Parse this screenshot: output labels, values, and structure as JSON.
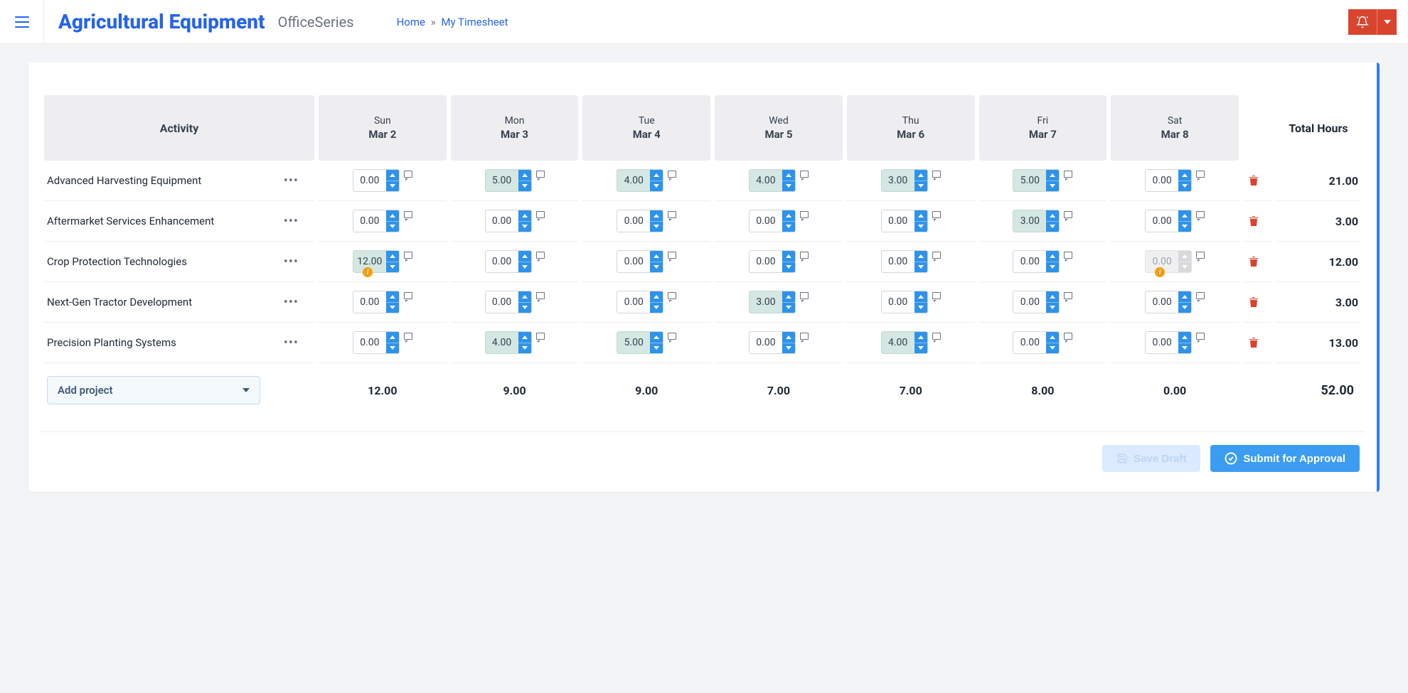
{
  "header": {
    "app_title": "Agricultural Equipment",
    "app_subtitle": "OfficeSeries",
    "breadcrumb_home": "Home",
    "breadcrumb_sep": "»",
    "breadcrumb_current": "My Timesheet"
  },
  "colors": {
    "primary": "#2563eb",
    "spinner": "#2e93ea",
    "danger": "#d9442f",
    "filled_bg": "#d4e7e2",
    "submit": "#3b9cf2",
    "warn": "#f59e0b"
  },
  "table": {
    "activity_header": "Activity",
    "total_header": "Total Hours",
    "days": [
      {
        "dow": "Sun",
        "date": "Mar 2"
      },
      {
        "dow": "Mon",
        "date": "Mar 3"
      },
      {
        "dow": "Tue",
        "date": "Mar 4"
      },
      {
        "dow": "Wed",
        "date": "Mar 5"
      },
      {
        "dow": "Thu",
        "date": "Mar 6"
      },
      {
        "dow": "Fri",
        "date": "Mar 7"
      },
      {
        "dow": "Sat",
        "date": "Mar 8"
      }
    ],
    "rows": [
      {
        "name": "Advanced Harvesting Equipment",
        "cells": [
          {
            "val": "0.00",
            "filled": false
          },
          {
            "val": "5.00",
            "filled": true
          },
          {
            "val": "4.00",
            "filled": true
          },
          {
            "val": "4.00",
            "filled": true
          },
          {
            "val": "3.00",
            "filled": true
          },
          {
            "val": "5.00",
            "filled": true
          },
          {
            "val": "0.00",
            "filled": false
          }
        ],
        "total": "21.00"
      },
      {
        "name": "Aftermarket Services Enhancement",
        "cells": [
          {
            "val": "0.00",
            "filled": false
          },
          {
            "val": "0.00",
            "filled": false
          },
          {
            "val": "0.00",
            "filled": false
          },
          {
            "val": "0.00",
            "filled": false
          },
          {
            "val": "0.00",
            "filled": false
          },
          {
            "val": "3.00",
            "filled": true
          },
          {
            "val": "0.00",
            "filled": false
          }
        ],
        "total": "3.00"
      },
      {
        "name": "Crop Protection Technologies",
        "cells": [
          {
            "val": "12.00",
            "filled": true,
            "warn": true
          },
          {
            "val": "0.00",
            "filled": false
          },
          {
            "val": "0.00",
            "filled": false
          },
          {
            "val": "0.00",
            "filled": false
          },
          {
            "val": "0.00",
            "filled": false
          },
          {
            "val": "0.00",
            "filled": false
          },
          {
            "val": "0.00",
            "filled": false,
            "disabled": true,
            "warn": true
          }
        ],
        "total": "12.00"
      },
      {
        "name": "Next-Gen Tractor Development",
        "cells": [
          {
            "val": "0.00",
            "filled": false
          },
          {
            "val": "0.00",
            "filled": false
          },
          {
            "val": "0.00",
            "filled": false
          },
          {
            "val": "3.00",
            "filled": true
          },
          {
            "val": "0.00",
            "filled": false
          },
          {
            "val": "0.00",
            "filled": false
          },
          {
            "val": "0.00",
            "filled": false
          }
        ],
        "total": "3.00"
      },
      {
        "name": "Precision Planting Systems",
        "cells": [
          {
            "val": "0.00",
            "filled": false
          },
          {
            "val": "4.00",
            "filled": true
          },
          {
            "val": "5.00",
            "filled": true
          },
          {
            "val": "0.00",
            "filled": false
          },
          {
            "val": "4.00",
            "filled": true
          },
          {
            "val": "0.00",
            "filled": false
          },
          {
            "val": "0.00",
            "filled": false
          }
        ],
        "total": "13.00"
      }
    ],
    "day_totals": [
      "12.00",
      "9.00",
      "9.00",
      "7.00",
      "7.00",
      "8.00",
      "0.00"
    ],
    "grand_total": "52.00",
    "add_project_label": "Add project"
  },
  "actions": {
    "save_draft": "Save Draft",
    "submit": "Submit for Approval"
  }
}
